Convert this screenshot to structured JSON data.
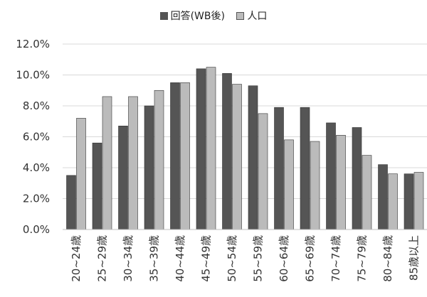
{
  "chart_data": {
    "type": "bar",
    "categories": [
      "20~24歳",
      "25~29歳",
      "30~34歳",
      "35~39歳",
      "40~44歳",
      "45~49歳",
      "50~54歳",
      "55~59歳",
      "60~64歳",
      "65~69歳",
      "70~74歳",
      "75~79歳",
      "80~84歳",
      "85歳以上"
    ],
    "series": [
      {
        "name": "回答(WB後)",
        "color": "#555555",
        "values": [
          3.5,
          5.6,
          6.7,
          8.0,
          9.5,
          10.4,
          10.1,
          9.3,
          7.9,
          7.9,
          6.9,
          6.6,
          4.2,
          3.6
        ]
      },
      {
        "name": "人口",
        "color": "#bbbbbb",
        "values": [
          7.2,
          8.6,
          8.6,
          9.0,
          9.5,
          10.5,
          9.4,
          7.5,
          5.8,
          5.7,
          6.1,
          4.8,
          3.6,
          3.7
        ]
      }
    ],
    "yticks": [
      "0.0%",
      "2.0%",
      "4.0%",
      "6.0%",
      "8.0%",
      "10.0%",
      "12.0%"
    ],
    "ylim": [
      0,
      12
    ],
    "grid": true,
    "legend_position": "top-center"
  }
}
